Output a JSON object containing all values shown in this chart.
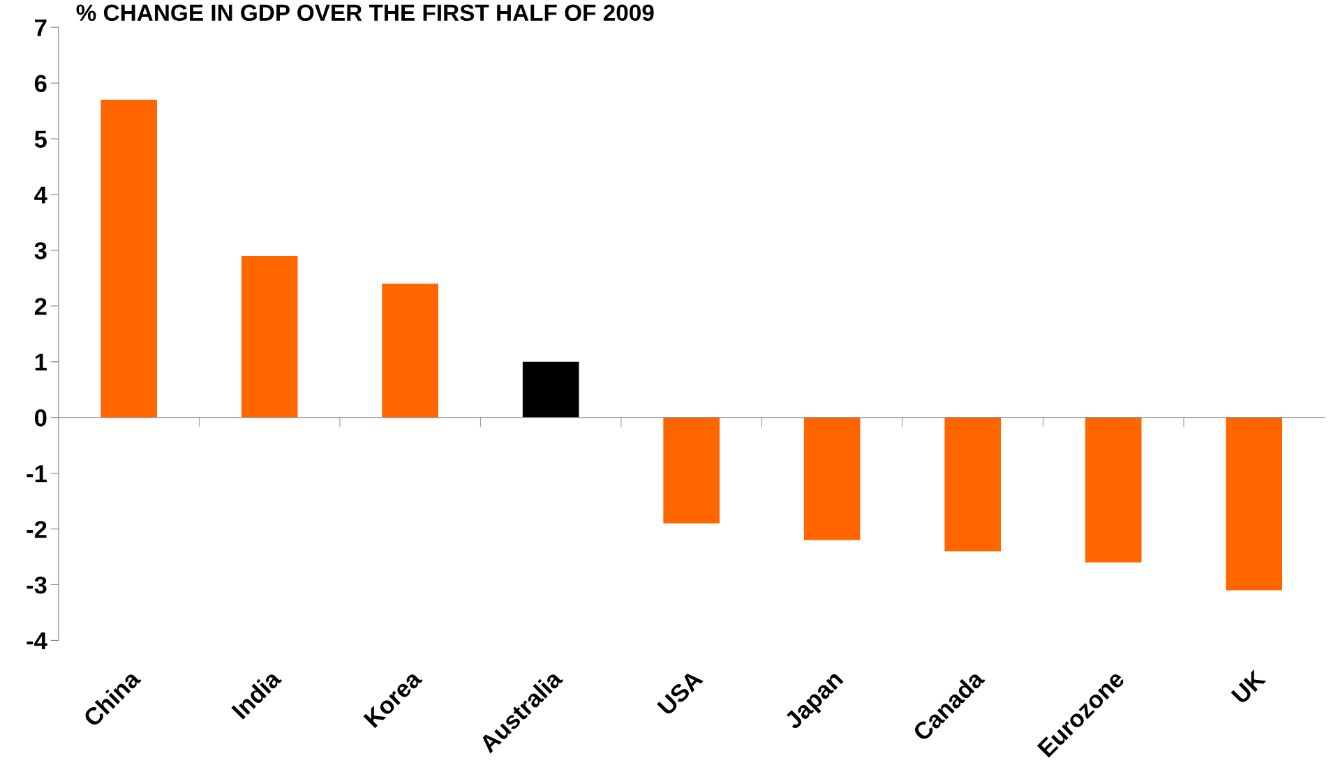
{
  "chart_data": {
    "type": "bar",
    "title": "% CHANGE IN GDP OVER THE FIRST HALF OF 2009",
    "categories": [
      "China",
      "India",
      "Korea",
      "Australia",
      "USA",
      "Japan",
      "Canada",
      "Eurozone",
      "UK"
    ],
    "values": [
      5.7,
      2.9,
      2.4,
      1.0,
      -1.9,
      -2.2,
      -2.4,
      -2.6,
      -3.1
    ],
    "colors": [
      "#ff6600",
      "#ff6600",
      "#ff6600",
      "#000000",
      "#ff6600",
      "#ff6600",
      "#ff6600",
      "#ff6600",
      "#ff6600"
    ],
    "ylim": [
      -4,
      7
    ],
    "yticks": [
      -4,
      -3,
      -2,
      -1,
      0,
      1,
      2,
      3,
      4,
      5,
      6,
      7
    ],
    "legend": false
  }
}
